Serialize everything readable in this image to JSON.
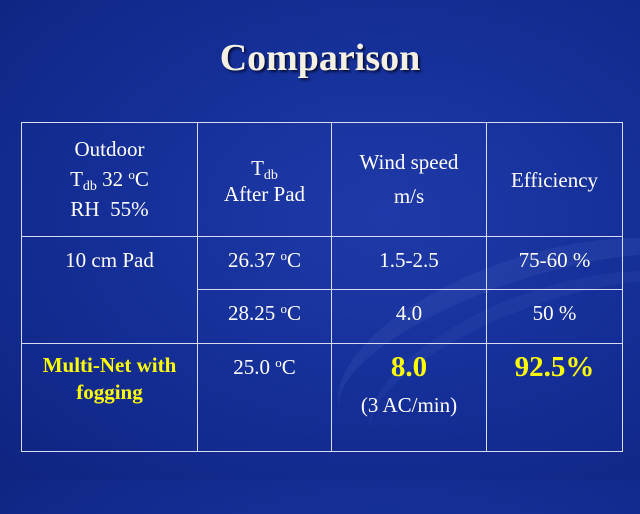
{
  "slide": {
    "title": "Comparison"
  },
  "table": {
    "header": {
      "outdoor_line1": "Outdoor",
      "outdoor_tdb_prefix": "T",
      "outdoor_tdb_sub": "db",
      "outdoor_tdb_value": " 32 ",
      "outdoor_tdb_sup": "o",
      "outdoor_tdb_unit": "C",
      "outdoor_rh": "RH  55%",
      "after_pad_t": "T",
      "after_pad_sub": "db",
      "after_pad_label": "After Pad",
      "wind_label": "Wind speed",
      "wind_unit": "m/s",
      "efficiency": "Efficiency"
    },
    "rows": [
      {
        "label": "10 cm Pad",
        "temp_value": "26.37 ",
        "temp_sup": "o",
        "temp_unit": "C",
        "wind": "1.5-2.5",
        "efficiency": "75-60 %"
      },
      {
        "label": "",
        "temp_value": "28.25 ",
        "temp_sup": "o",
        "temp_unit": "C",
        "wind": "4.0",
        "efficiency": "50 %"
      },
      {
        "label_line1": "Multi-Net with",
        "label_line2": "fogging",
        "temp_value": "25.0 ",
        "temp_sup": "o",
        "temp_unit": "C",
        "wind": "8.0",
        "wind_note": "(3 AC/min)",
        "efficiency": "92.5%"
      }
    ]
  },
  "colors": {
    "background": "#16309a",
    "title": "#f4f1e2",
    "highlight": "#ffff00",
    "text": "#ffffff"
  }
}
